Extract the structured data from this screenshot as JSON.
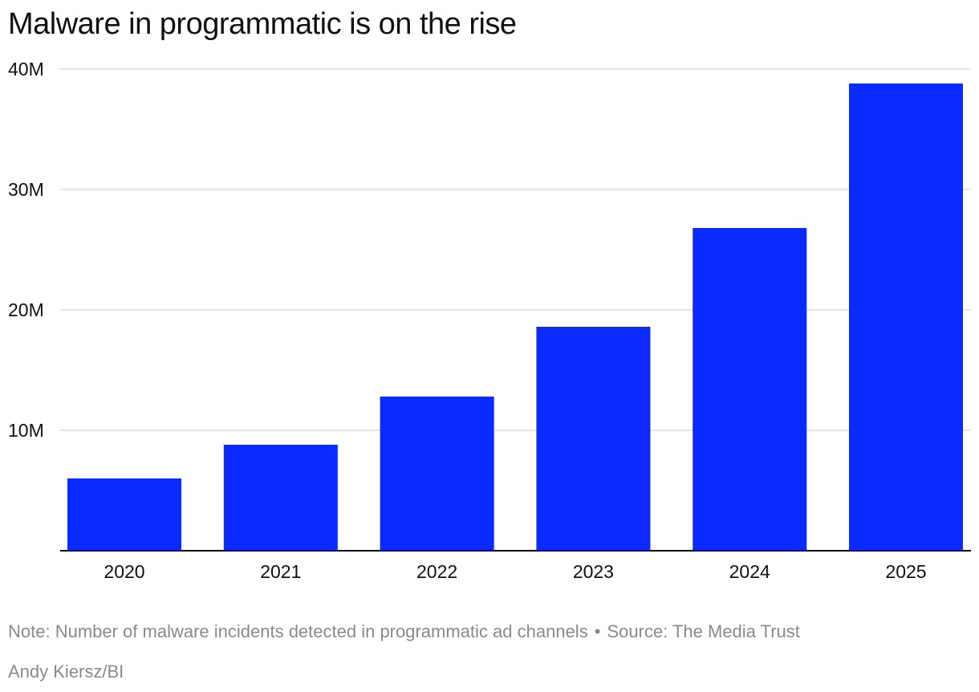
{
  "colors": {
    "bar": "#0a2aff",
    "grid": "#dddddd",
    "axis": "#000000",
    "text": "#111111",
    "muted": "#8a8a8a"
  },
  "chart_data": {
    "type": "bar",
    "title": "Malware in programmatic is on the rise",
    "categories": [
      "2020",
      "2021",
      "2022",
      "2023",
      "2024",
      "2025"
    ],
    "values": [
      6,
      8.8,
      12.8,
      18.6,
      26.8,
      38.8
    ],
    "value_unit": "millions",
    "ylim": [
      0,
      40
    ],
    "yticks": [
      {
        "value": 10,
        "label": "10M"
      },
      {
        "value": 20,
        "label": "20M"
      },
      {
        "value": 30,
        "label": "30M"
      },
      {
        "value": 40,
        "label": "40M"
      }
    ],
    "xlabel": "",
    "ylabel": "",
    "grid": true,
    "legend": "none"
  },
  "footer": {
    "note": "Note: Number of malware incidents detected in programmatic ad channels",
    "separator": "•",
    "source": "Source: The Media Trust",
    "credit": "Andy Kiersz/BI"
  }
}
